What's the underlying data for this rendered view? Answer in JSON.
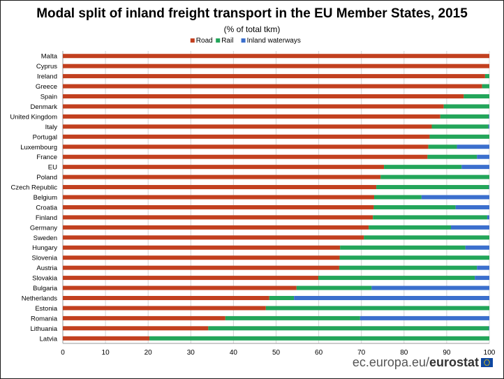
{
  "chart_data": {
    "type": "bar",
    "orientation": "horizontal",
    "stacked": true,
    "title": "Modal split of inland freight transport in the EU Member States, 2015",
    "subtitle": "(% of total tkm)",
    "legend_position": "top-center",
    "grid": true,
    "xlim": [
      0,
      100
    ],
    "x_ticks": [
      "0",
      "10",
      "20",
      "30",
      "40",
      "50",
      "60",
      "70",
      "80",
      "90",
      "100"
    ],
    "categories": [
      "Malta",
      "Cyprus",
      "Ireland",
      "Greece",
      "Spain",
      "Denmark",
      "United Kingdom",
      "Italy",
      "Portugal",
      "Luxembourg",
      "France",
      "EU",
      "Poland",
      "Czech Republic",
      "Belgium",
      "Croatia",
      "Finland",
      "Germany",
      "Sweden",
      "Hungary",
      "Slovenia",
      "Austria",
      "Slovakia",
      "Bulgaria",
      "Netherlands",
      "Estonia",
      "Romania",
      "Lithuania",
      "Latvia"
    ],
    "series": [
      {
        "name": "Road",
        "color": "#c2401f",
        "values": [
          100,
          100,
          99,
          98.3,
          94,
          89.3,
          88.5,
          86.5,
          86,
          85.7,
          85.5,
          75.3,
          74.5,
          73.5,
          73,
          72.9,
          72.7,
          71.7,
          70.6,
          65,
          64.9,
          64.8,
          59.9,
          54.8,
          48.4,
          47.6,
          38.1,
          34.1,
          20.3
        ]
      },
      {
        "name": "Rail",
        "color": "#23a55a",
        "values": [
          0,
          0,
          1,
          1.7,
          6,
          10.7,
          11.4,
          13.3,
          14,
          6.7,
          11.6,
          18.2,
          25.5,
          26.4,
          11.1,
          19.2,
          26.8,
          19.3,
          29.4,
          29.4,
          35.1,
          32.3,
          36.7,
          17.6,
          5.8,
          52.4,
          31.6,
          65.8,
          79.7
        ]
      },
      {
        "name": "Inland waterways",
        "color": "#3b6fcd",
        "values": [
          0,
          0,
          0,
          0,
          0,
          0,
          0.1,
          0.2,
          0,
          7.6,
          2.9,
          6.5,
          0,
          0.1,
          15.9,
          7.9,
          0.5,
          9.0,
          0,
          5.6,
          0,
          2.9,
          3.4,
          27.6,
          45.8,
          0,
          30.3,
          0.1,
          0
        ]
      }
    ]
  },
  "footer": {
    "site": "ec.europa.eu/",
    "brand": "eurostat"
  }
}
